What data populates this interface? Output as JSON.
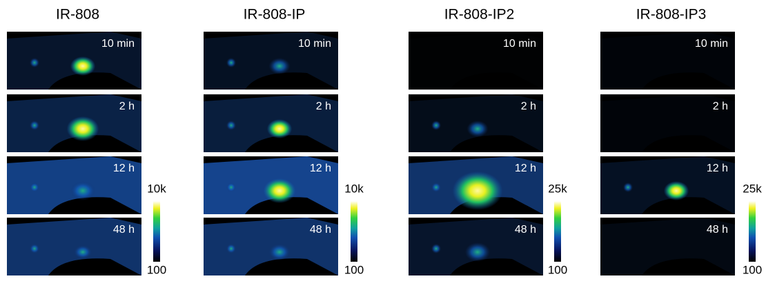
{
  "columns": [
    {
      "title": "IR-808",
      "panels": [
        "10 min",
        "2 h",
        "12 h",
        "48 h"
      ],
      "scale_max": "10k",
      "scale_min": "100"
    },
    {
      "title": "IR-808-IP",
      "panels": [
        "10 min",
        "2 h",
        "12 h",
        "48 h"
      ],
      "scale_max": "10k",
      "scale_min": "100"
    },
    {
      "title": "IR-808-IP2",
      "panels": [
        "10 min",
        "2 h",
        "12 h",
        "48 h"
      ],
      "scale_max": "25k",
      "scale_min": "100"
    },
    {
      "title": "IR-808-IP3",
      "panels": [
        "10 min",
        "2 h",
        "12 h",
        "48 h"
      ],
      "scale_max": "25k",
      "scale_min": "100"
    }
  ]
}
